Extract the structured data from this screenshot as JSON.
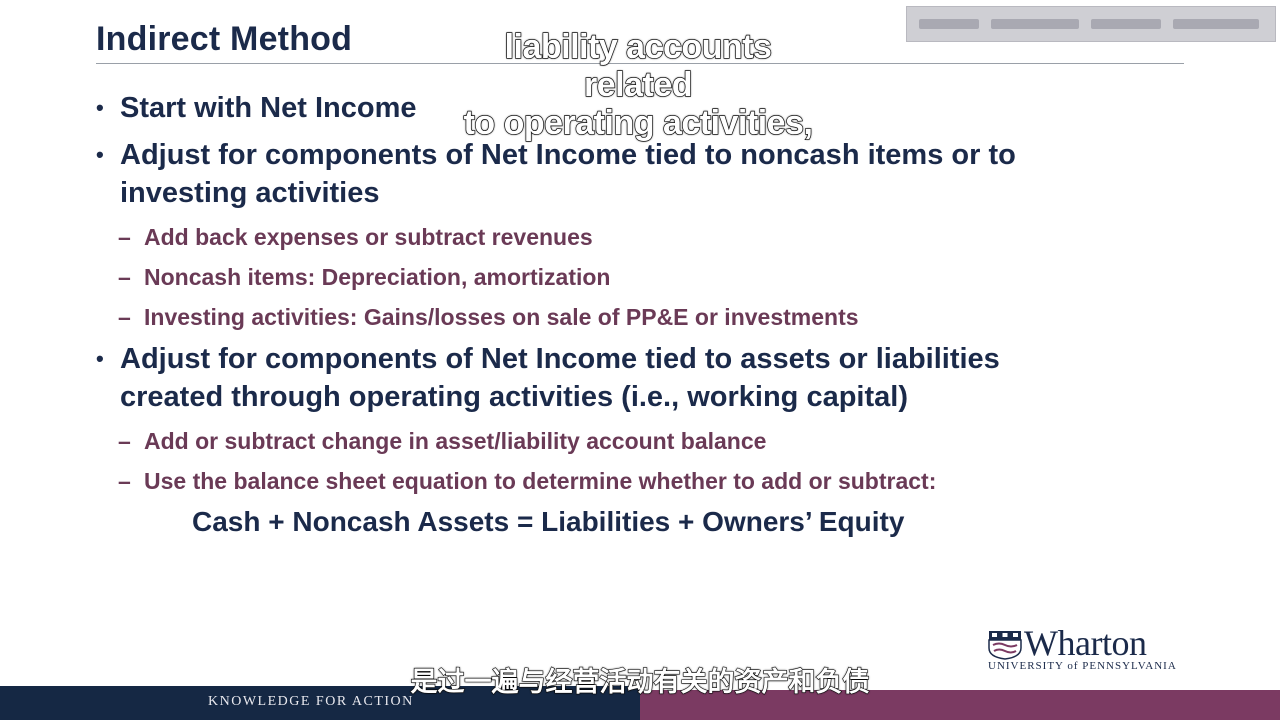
{
  "slide": {
    "title": "Indirect Method",
    "bullets": [
      {
        "text": "Start with Net Income"
      },
      {
        "text": "Adjust for components of Net Income tied to noncash items or to investing activities"
      },
      {
        "text": "Adjust for components of Net Income tied to assets or liabilities created through operating activities (i.e., working capital)"
      }
    ],
    "sub_bullets_1": [
      "Add back expenses or subtract revenues",
      "Noncash items: Depreciation, amortization",
      "Investing activities: Gains/losses on sale of PP&E or investments"
    ],
    "sub_bullets_2": [
      "Add or subtract change in asset/liability account balance",
      "Use the balance sheet equation to determine whether to add or subtract:"
    ],
    "equation": "Cash + Noncash Assets = Liabilities + Owners’ Equity",
    "bullet_glyph": "•",
    "dash_glyph": "–"
  },
  "captions": {
    "top_line1": "liability accounts related",
    "top_line2": "to operating activities,",
    "bottom": "是过一遍与经营活动有关的资产和负债"
  },
  "branding": {
    "wordmark": "Wharton",
    "university": "UNIVERSITY of PENNSYLVANIA",
    "footer": "KNOWLEDGE FOR ACTION"
  },
  "colors": {
    "title": "#1b2a4a",
    "sub_bullet": "#6a3a56",
    "footer_navy": "#152844",
    "footer_plum": "#7b3a62"
  }
}
